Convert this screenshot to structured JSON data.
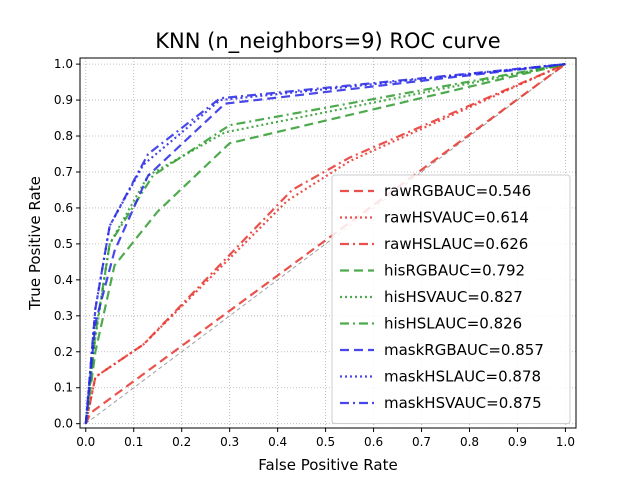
{
  "chart_data": {
    "type": "line",
    "title": "KNN (n_neighbors=9) ROC curve",
    "xlabel": "False Positive Rate",
    "ylabel": "True Positive Rate",
    "xlim": [
      0,
      1
    ],
    "ylim": [
      0,
      1
    ],
    "x_ticks": [
      "0.0",
      "0.1",
      "0.2",
      "0.3",
      "0.4",
      "0.5",
      "0.6",
      "0.7",
      "0.8",
      "0.9",
      "1.0"
    ],
    "y_ticks": [
      "0.0",
      "0.1",
      "0.2",
      "0.3",
      "0.4",
      "0.5",
      "0.6",
      "0.7",
      "0.8",
      "0.9",
      "1.0"
    ],
    "grid": true,
    "legend_position": "lower-right",
    "diagonal": {
      "x": [
        0,
        1
      ],
      "y": [
        0,
        1
      ],
      "color": "#a0a0a0",
      "style": "dashed"
    },
    "series": [
      {
        "name": "rawRGBAUC=0.546",
        "color": "#e8322d",
        "style": "dashed",
        "x": [
          0,
          0.01,
          1
        ],
        "y": [
          0,
          0.03,
          1
        ]
      },
      {
        "name": "rawHSVAUC=0.614",
        "color": "#e8322d",
        "style": "dotted",
        "x": [
          0,
          0.02,
          0.12,
          0.42,
          0.55,
          1
        ],
        "y": [
          0,
          0.13,
          0.22,
          0.62,
          0.73,
          1
        ]
      },
      {
        "name": "rawHSLAUC=0.626",
        "color": "#e8322d",
        "style": "dashdot",
        "x": [
          0,
          0.02,
          0.12,
          0.43,
          0.55,
          1
        ],
        "y": [
          0,
          0.13,
          0.22,
          0.65,
          0.74,
          1
        ]
      },
      {
        "name": "hisRGBAUC=0.792",
        "color": "#2e9c2e",
        "style": "dashed",
        "x": [
          0,
          0.02,
          0.06,
          0.15,
          0.3,
          1
        ],
        "y": [
          0,
          0.2,
          0.44,
          0.59,
          0.78,
          1
        ]
      },
      {
        "name": "hisHSVAUC=0.827",
        "color": "#2e9c2e",
        "style": "dotted",
        "x": [
          0,
          0.02,
          0.05,
          0.13,
          0.29,
          1
        ],
        "y": [
          0,
          0.24,
          0.5,
          0.69,
          0.81,
          1
        ]
      },
      {
        "name": "hisHSLAUC=0.826",
        "color": "#2e9c2e",
        "style": "dashdot",
        "x": [
          0,
          0.02,
          0.05,
          0.14,
          0.3,
          1
        ],
        "y": [
          0,
          0.25,
          0.5,
          0.69,
          0.83,
          1
        ]
      },
      {
        "name": "maskRGBAUC=0.857",
        "color": "#2828e6",
        "style": "dashed",
        "x": [
          0,
          0.02,
          0.06,
          0.13,
          0.29,
          1
        ],
        "y": [
          0,
          0.28,
          0.48,
          0.69,
          0.89,
          1
        ]
      },
      {
        "name": "maskHSLAUC=0.878",
        "color": "#2828e6",
        "style": "dotted",
        "x": [
          0,
          0.02,
          0.05,
          0.12,
          0.28,
          1
        ],
        "y": [
          0,
          0.32,
          0.55,
          0.72,
          0.9,
          1
        ]
      },
      {
        "name": "maskHSVAUC=0.875",
        "color": "#2828e6",
        "style": "dashdot",
        "x": [
          0,
          0.02,
          0.05,
          0.13,
          0.28,
          1
        ],
        "y": [
          0,
          0.32,
          0.55,
          0.75,
          0.905,
          1
        ]
      }
    ]
  }
}
